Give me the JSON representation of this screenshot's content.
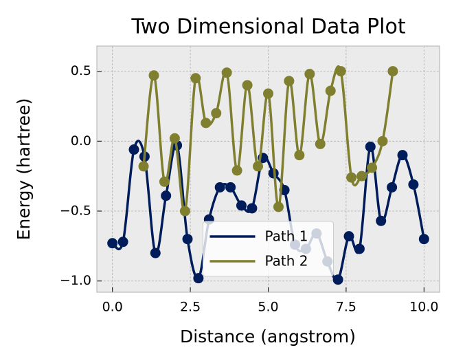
{
  "chart_data": {
    "type": "line",
    "title": "Two Dimensional Data Plot",
    "x_label": "Distance (angstrom)",
    "y_label": "Energy (hartree)",
    "xlim": [
      -0.5,
      10.5
    ],
    "ylim": [
      -1.08,
      0.68
    ],
    "xticks": [
      {
        "value": 0,
        "label": "0.0"
      },
      2.5,
      {
        "value": 5,
        "label": "5.0"
      },
      7.5,
      {
        "value": 10,
        "label": "10.0"
      }
    ],
    "yticks": [
      {
        "value": -1,
        "label": "−1.0"
      },
      {
        "value": -0.5,
        "label": "−0.5"
      },
      {
        "value": 0,
        "label": "0.0"
      },
      0.5
    ],
    "grid": true,
    "legend_position": "lower center",
    "series": [
      {
        "name": "Path 1",
        "color": "#001c5a",
        "x": [
          0,
          0.34,
          0.69,
          1.03,
          1.38,
          1.72,
          2.07,
          2.41,
          2.76,
          3.1,
          3.45,
          3.79,
          4.14,
          4.48,
          4.83,
          5.17,
          5.52,
          5.86,
          6.21,
          6.55,
          6.9,
          7.24,
          7.59,
          7.93,
          8.28,
          8.62,
          8.97,
          9.31,
          9.66,
          10
        ],
        "values": [
          -0.73,
          -0.72,
          -0.06,
          -0.11,
          -0.8,
          -0.39,
          -0.03,
          -0.7,
          -0.98,
          -0.56,
          -0.33,
          -0.33,
          -0.46,
          -0.48,
          -0.12,
          -0.23,
          -0.35,
          -0.74,
          -0.77,
          -0.66,
          -0.86,
          -0.99,
          -0.68,
          -0.77,
          -0.04,
          -0.57,
          -0.33,
          -0.1,
          -0.31,
          -0.7
        ]
      },
      {
        "name": "Path 2",
        "color": "#7f7f2f",
        "x": [
          1,
          1.33,
          1.67,
          2,
          2.33,
          2.67,
          3,
          3.33,
          3.67,
          4,
          4.33,
          4.67,
          5,
          5.33,
          5.67,
          6,
          6.33,
          6.67,
          7,
          7.33,
          7.67,
          8,
          8.33,
          8.67,
          9
        ],
        "values": [
          -0.18,
          0.47,
          -0.29,
          0.02,
          -0.5,
          0.45,
          0.13,
          0.2,
          0.49,
          -0.21,
          0.4,
          -0.18,
          0.34,
          -0.47,
          0.43,
          -0.1,
          0.48,
          -0.02,
          0.36,
          0.5,
          -0.26,
          -0.25,
          -0.19,
          0,
          0.5
        ]
      }
    ]
  }
}
